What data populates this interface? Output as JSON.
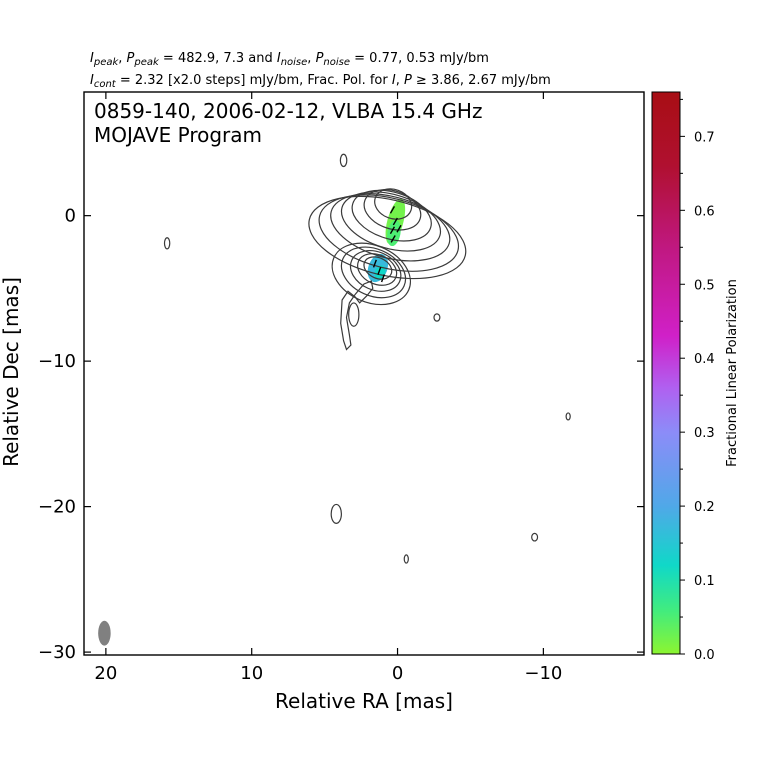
{
  "header": {
    "line1": {
      "i": "I",
      "peak1": "peak",
      "sep1": ", ",
      "p": "P",
      "peak2": "peak",
      "mid": " = 482.9, 7.3 and ",
      "i2": "I",
      "noise1": "noise",
      "sep2": ", ",
      "p2": "P",
      "noise2": "noise",
      "tail": " = 0.77, 0.53 mJy/bm"
    },
    "line2": {
      "i": "I",
      "cont": "cont",
      "mid": " = 2.32 [x2.0 steps] mJy/bm, Frac. Pol. for ",
      "i2": "I",
      "comma": ", ",
      "p": "P",
      "tail": " ≥  3.86, 2.67 mJy/bm"
    }
  },
  "chart_data": {
    "type": "contour",
    "title_line1": "0859-140, 2006-02-12, VLBA 15.4 GHz",
    "title_line2": "MOJAVE Program",
    "xlabel": "Relative RA [mas]",
    "ylabel": "Relative Dec [mas]",
    "xlim": [
      21.5,
      -16.9
    ],
    "ylim": [
      -30.2,
      8.5
    ],
    "x_ticks": [
      20,
      10,
      0,
      -10
    ],
    "x_tick_labels": [
      "20",
      "10",
      "0",
      "−10"
    ],
    "y_ticks": [
      0,
      -10,
      -20,
      -30
    ],
    "y_tick_labels": [
      "0",
      "−10",
      "−20",
      "−30"
    ],
    "contour_color": "#3a3a3a",
    "colorbar": {
      "label": "Fractional Linear Polarization",
      "range": [
        0.0,
        0.76
      ],
      "ticks": [
        0.0,
        0.1,
        0.2,
        0.3,
        0.4,
        0.5,
        0.6,
        0.7
      ],
      "tick_labels": [
        "0.0",
        "0.1",
        "0.2",
        "0.3",
        "0.4",
        "0.5",
        "0.6",
        "0.7"
      ],
      "minor_ticks": [
        0.05,
        0.15,
        0.25,
        0.35,
        0.45,
        0.55,
        0.65,
        0.75
      ],
      "color_stops": [
        {
          "v": 0.0,
          "color": "#8cf530"
        },
        {
          "v": 0.06,
          "color": "#40ec80"
        },
        {
          "v": 0.12,
          "color": "#10d8c8"
        },
        {
          "v": 0.2,
          "color": "#50a8e8"
        },
        {
          "v": 0.3,
          "color": "#8c8cf8"
        },
        {
          "v": 0.36,
          "color": "#b060f0"
        },
        {
          "v": 0.43,
          "color": "#d020c8"
        },
        {
          "v": 0.55,
          "color": "#c01880"
        },
        {
          "v": 0.66,
          "color": "#b01030"
        },
        {
          "v": 0.76,
          "color": "#a80e14"
        }
      ]
    },
    "core_contours": [
      {
        "x": 0.3,
        "y": 0.8,
        "rx": 1.0,
        "ry": 1.3,
        "angle": -70
      },
      {
        "x": 0.35,
        "y": 0.4,
        "rx": 1.3,
        "ry": 2.0,
        "angle": -72
      },
      {
        "x": 0.4,
        "y": 0.0,
        "rx": 1.6,
        "ry": 2.8,
        "angle": -73
      },
      {
        "x": 0.45,
        "y": -0.4,
        "rx": 1.85,
        "ry": 3.5,
        "angle": -74
      },
      {
        "x": 0.5,
        "y": -0.8,
        "rx": 2.1,
        "ry": 4.2,
        "angle": -75
      },
      {
        "x": 0.6,
        "y": -1.2,
        "rx": 2.4,
        "ry": 4.9,
        "angle": -76
      },
      {
        "x": 0.7,
        "y": -1.5,
        "rx": 2.6,
        "ry": 5.5,
        "angle": -77
      }
    ],
    "knot_contours": [
      {
        "x": 1.35,
        "y": -3.6,
        "rx": 0.7,
        "ry": 1.0,
        "angle": -65
      },
      {
        "x": 1.4,
        "y": -3.7,
        "rx": 1.0,
        "ry": 1.4,
        "angle": -65
      },
      {
        "x": 1.5,
        "y": -3.8,
        "rx": 1.3,
        "ry": 1.8,
        "angle": -66
      },
      {
        "x": 1.65,
        "y": -3.9,
        "rx": 1.6,
        "ry": 2.3,
        "angle": -66
      },
      {
        "x": 1.8,
        "y": -4.0,
        "rx": 1.95,
        "ry": 2.8,
        "angle": -67
      }
    ],
    "small_contours": [
      {
        "x": 3.7,
        "y": 3.8,
        "rx": 0.22,
        "ry": 0.42
      },
      {
        "x": 15.8,
        "y": -1.9,
        "rx": 0.18,
        "ry": 0.38
      },
      {
        "x": -2.7,
        "y": -7.0,
        "rx": 0.2,
        "ry": 0.25
      },
      {
        "x": -11.7,
        "y": -13.8,
        "rx": 0.14,
        "ry": 0.24
      },
      {
        "x": 4.2,
        "y": -20.5,
        "rx": 0.35,
        "ry": 0.65
      },
      {
        "x": -9.4,
        "y": -22.1,
        "rx": 0.2,
        "ry": 0.26
      },
      {
        "x": -0.6,
        "y": -23.6,
        "rx": 0.14,
        "ry": 0.28
      }
    ],
    "polarization_patches": [
      {
        "x": 0.15,
        "y": -0.4,
        "rx": 0.55,
        "ry": 1.6,
        "angle": 15,
        "value": 0.02
      },
      {
        "x": 0.25,
        "y": -1.2,
        "rx": 0.45,
        "ry": 0.9,
        "angle": 10,
        "value": 0.05
      },
      {
        "x": 1.35,
        "y": -3.6,
        "rx": 0.65,
        "ry": 1.0,
        "angle": 20,
        "value": 0.17
      },
      {
        "x": 1.2,
        "y": -3.9,
        "rx": 0.35,
        "ry": 0.5,
        "angle": 20,
        "value": 0.12
      }
    ],
    "evpa_ticks": [
      {
        "x": 0.35,
        "y": 0.4,
        "angle": 60
      },
      {
        "x": 0.15,
        "y": -0.4,
        "angle": 60
      },
      {
        "x": 0.35,
        "y": -1.0,
        "angle": 60
      },
      {
        "x": -0.1,
        "y": -0.9,
        "angle": 60
      },
      {
        "x": 0.3,
        "y": -1.6,
        "angle": 60
      },
      {
        "x": 1.55,
        "y": -3.3,
        "angle": 70
      },
      {
        "x": 1.25,
        "y": -3.8,
        "angle": 70
      },
      {
        "x": 1.0,
        "y": -4.3,
        "angle": 70
      }
    ],
    "beam": {
      "x": 20.1,
      "y": -28.7,
      "major": 1.45,
      "minor": 0.6,
      "angle": 0,
      "color": "#808080"
    }
  }
}
